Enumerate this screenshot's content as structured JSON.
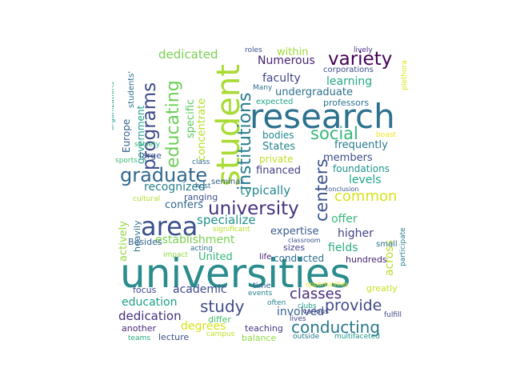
{
  "words": [
    {
      "text": "universities",
      "color": "#2a8c8c"
    },
    {
      "text": "research",
      "color": "#2c728e"
    },
    {
      "text": "student",
      "color": "#a8db34"
    },
    {
      "text": "area",
      "color": "#3b518b"
    },
    {
      "text": "university",
      "color": "#46337e"
    },
    {
      "text": "graduate",
      "color": "#31688e"
    },
    {
      "text": "institutions",
      "color": "#287c8e"
    },
    {
      "text": "programs",
      "color": "#3e4a89"
    },
    {
      "text": "educating",
      "color": "#6ece58"
    },
    {
      "text": "variety",
      "color": "#440154"
    },
    {
      "text": "social",
      "color": "#35b779"
    },
    {
      "text": "centers",
      "color": "#3b528b"
    },
    {
      "text": "common",
      "color": "#d8e219"
    },
    {
      "text": "provide",
      "color": "#3f4788"
    },
    {
      "text": "conducting",
      "color": "#2a788e"
    },
    {
      "text": "classes",
      "color": "#472c7a"
    },
    {
      "text": "study",
      "color": "#3e4c8a"
    },
    {
      "text": "dedicated",
      "color": "#7ad151"
    },
    {
      "text": "specialize",
      "color": "#21918c"
    },
    {
      "text": "typically",
      "color": "#24868e"
    },
    {
      "text": "Numerous",
      "color": "#482475"
    },
    {
      "text": "faculty",
      "color": "#414487"
    },
    {
      "text": "undergraduate",
      "color": "#2d708e"
    },
    {
      "text": "learning",
      "color": "#22a884"
    },
    {
      "text": "within",
      "color": "#a0da39"
    },
    {
      "text": "specific",
      "color": "#5ec962"
    },
    {
      "text": "concentrate",
      "color": "#b5de2b"
    },
    {
      "text": "government",
      "color": "#1f9e89"
    },
    {
      "text": "establishment",
      "color": "#7ad151"
    },
    {
      "text": "recognized",
      "color": "#277f8e"
    },
    {
      "text": "confers",
      "color": "#31688e"
    },
    {
      "text": "financed",
      "color": "#433e85"
    },
    {
      "text": "frequently",
      "color": "#2a788e"
    },
    {
      "text": "members",
      "color": "#3d4e8a"
    },
    {
      "text": "foundations",
      "color": "#1f948c"
    },
    {
      "text": "levels",
      "color": "#20a486"
    },
    {
      "text": "offer",
      "color": "#38b977"
    },
    {
      "text": "higher",
      "color": "#424086"
    },
    {
      "text": "expertise",
      "color": "#375b8d"
    },
    {
      "text": "fields",
      "color": "#29af7f"
    },
    {
      "text": "involved",
      "color": "#35608d"
    },
    {
      "text": "academic",
      "color": "#3e4989"
    },
    {
      "text": "education",
      "color": "#1fa088"
    },
    {
      "text": "dedication",
      "color": "#46317e"
    },
    {
      "text": "degrees",
      "color": "#d8e219"
    },
    {
      "text": "teaching",
      "color": "#453581"
    },
    {
      "text": "across",
      "color": "#b8de29"
    },
    {
      "text": "United",
      "color": "#35b779"
    },
    {
      "text": "States",
      "color": "#25848e"
    },
    {
      "text": "bodies",
      "color": "#23898e"
    },
    {
      "text": "private",
      "color": "#bddf26"
    },
    {
      "text": "conducted",
      "color": "#2e6f8e"
    },
    {
      "text": "actively",
      "color": "#95d840"
    },
    {
      "text": "heavily",
      "color": "#2e6e8e"
    },
    {
      "text": "Besides",
      "color": "#32648e"
    },
    {
      "text": "ranging",
      "color": "#3b528b"
    },
    {
      "text": "Europe",
      "color": "#355f8d"
    },
    {
      "text": "students'",
      "color": "#2c738e"
    },
    {
      "text": "organizations",
      "color": "#1e9b8a"
    },
    {
      "text": "large",
      "color": "#3a548c"
    },
    {
      "text": "sports",
      "color": "#3fbc73"
    },
    {
      "text": "society",
      "color": "#2db27d"
    },
    {
      "text": "class",
      "color": "#306a8e"
    },
    {
      "text": "seminar",
      "color": "#355e8d"
    },
    {
      "text": "host",
      "color": "#2f6b8e"
    },
    {
      "text": "conclusion",
      "color": "#3a548c"
    },
    {
      "text": "cultural",
      "color": "#b0dd2f"
    },
    {
      "text": "significant",
      "color": "#b8de29"
    },
    {
      "text": "classroom",
      "color": "#3b528b"
    },
    {
      "text": "small",
      "color": "#2c738e"
    },
    {
      "text": "participate",
      "color": "#287d8e"
    },
    {
      "text": "hundreds",
      "color": "#481f70"
    },
    {
      "text": "sizes",
      "color": "#414487"
    },
    {
      "text": "life",
      "color": "#481a6c"
    },
    {
      "text": "acting",
      "color": "#2d708e"
    },
    {
      "text": "impact",
      "color": "#93d741"
    },
    {
      "text": "focus",
      "color": "#3e4989"
    },
    {
      "text": "time",
      "color": "#355f8d"
    },
    {
      "text": "events",
      "color": "#26818e"
    },
    {
      "text": "opportunities",
      "color": "#e7e419"
    },
    {
      "text": "greatly",
      "color": "#c8e020"
    },
    {
      "text": "often",
      "color": "#26828e"
    },
    {
      "text": "clubs",
      "color": "#1f9f88"
    },
    {
      "text": "fulfill",
      "color": "#3f4788"
    },
    {
      "text": "differ",
      "color": "#4ac16d"
    },
    {
      "text": "lives",
      "color": "#404688"
    },
    {
      "text": "another",
      "color": "#482878"
    },
    {
      "text": "lecture",
      "color": "#3b528b"
    },
    {
      "text": "campus",
      "color": "#c2df23"
    },
    {
      "text": "balance",
      "color": "#8fd744"
    },
    {
      "text": "various",
      "color": "#433e85"
    },
    {
      "text": "outside",
      "color": "#2a788e"
    },
    {
      "text": "multifaceted",
      "color": "#1f958b"
    },
    {
      "text": "teams",
      "color": "#25ab82"
    },
    {
      "text": "roles",
      "color": "#3b528b"
    },
    {
      "text": "lively",
      "color": "#472d7b"
    },
    {
      "text": "corporations",
      "color": "#3d4d8a"
    },
    {
      "text": "Many",
      "color": "#2e6e8e"
    },
    {
      "text": "expected",
      "color": "#20a386"
    },
    {
      "text": "professors",
      "color": "#2c718e"
    },
    {
      "text": "plethora",
      "color": "#dde318"
    },
    {
      "text": "boast",
      "color": "#f1e51d"
    }
  ]
}
